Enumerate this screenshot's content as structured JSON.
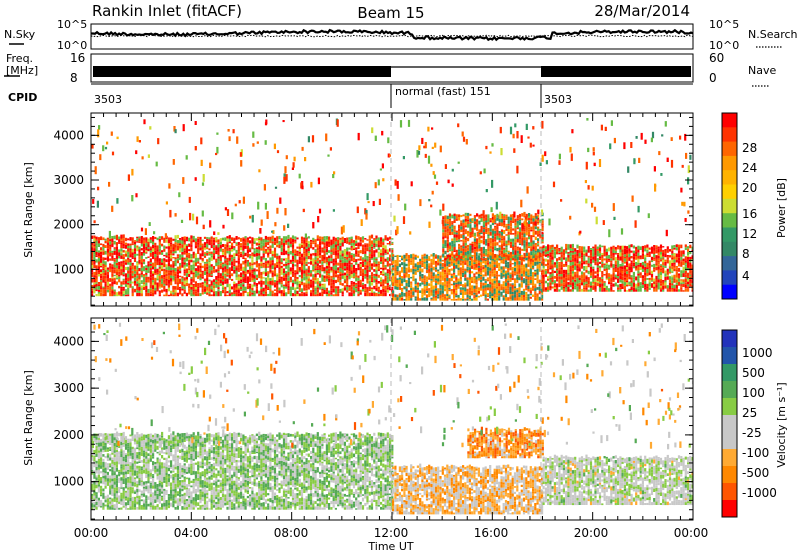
{
  "header": {
    "station": "Rankin Inlet (fitACF)",
    "beam": "Beam 15",
    "date": "28/Mar/2014"
  },
  "strip": {
    "nsky_label": "N.Sky",
    "nsearch_label": "N.Search",
    "freq_label_1": "Freq.",
    "freq_label_2": "[MHz]",
    "nave_label": "Nave",
    "cpid_label": "CPID",
    "left_ticks_noise": [
      "10^5",
      "10^0"
    ],
    "right_ticks_noise": [
      "10^5",
      "10^0"
    ],
    "left_ticks_freq": [
      "16",
      "8"
    ],
    "right_ticks_nave": [
      "60",
      "0"
    ],
    "cpid_segments": [
      {
        "text": "3503",
        "start_hour": 0
      },
      {
        "text": "normal (fast) 151",
        "start_hour": 12
      },
      {
        "text": "3503",
        "start_hour": 18
      }
    ]
  },
  "power_panel": {
    "ylabel": "Slant Range [km]",
    "cbar_label": "Power [dB]",
    "cbar_ticks": [
      "28",
      "24",
      "20",
      "16",
      "12",
      "8",
      "4"
    ],
    "cbar_colors": [
      "#ff0000",
      "#ff3300",
      "#ff6600",
      "#ff9900",
      "#ffb300",
      "#ffd000",
      "#ccdd33",
      "#66bb44",
      "#339966",
      "#338866",
      "#336699",
      "#2244bb",
      "#0000ff"
    ]
  },
  "velocity_panel": {
    "ylabel": "Slant Range [km]",
    "cbar_label": "Velocity [m s⁻¹]",
    "cbar_ticks": [
      "1000",
      "500",
      "100",
      "25",
      "-25",
      "-100",
      "-500",
      "-1000"
    ],
    "cbar_colors": [
      "#2233bb",
      "#2255aa",
      "#339966",
      "#55aa55",
      "#88cc44",
      "#c8c8c8",
      "#c8c8c8",
      "#ffaa33",
      "#ff8800",
      "#ff5500",
      "#ff0000"
    ]
  },
  "x_axis": {
    "label": "Time UT",
    "ticks": [
      "00:00",
      "04:00",
      "08:00",
      "12:00",
      "16:00",
      "20:00",
      "00:00"
    ]
  },
  "chart_data": [
    {
      "type": "heatmap",
      "title": "Rankin Inlet (fitACF) Beam 15 28/Mar/2014",
      "xlabel": "Time UT",
      "ylabel": "Slant Range [km]",
      "colorbar_label": "Power [dB]",
      "xlim": [
        "00:00",
        "24:00"
      ],
      "ylim": [
        180,
        4500
      ],
      "yticks": [
        1000,
        2000,
        3000,
        4000
      ],
      "clim": [
        0,
        30
      ],
      "description_bands": [
        {
          "t_start": 0,
          "t_end": 12,
          "range_min": 400,
          "range_max": 1700,
          "power_db": 26
        },
        {
          "t_start": 12,
          "t_end": 18,
          "range_min": 300,
          "range_max": 1300,
          "power_db": 22
        },
        {
          "t_start": 14,
          "t_end": 18,
          "range_min": 1200,
          "range_max": 2200,
          "power_db": 24
        },
        {
          "t_start": 18,
          "t_end": 24,
          "range_min": 500,
          "range_max": 1500,
          "power_db": 26
        }
      ]
    },
    {
      "type": "heatmap",
      "xlabel": "Time UT",
      "ylabel": "Slant Range [km]",
      "colorbar_label": "Velocity [m s⁻¹]",
      "xlim": [
        "00:00",
        "24:00"
      ],
      "ylim": [
        180,
        4500
      ],
      "yticks": [
        1000,
        2000,
        3000,
        4000
      ],
      "clim": [
        -1000,
        1000
      ],
      "description_bands": [
        {
          "t_start": 0,
          "t_end": 12,
          "range_min": 400,
          "range_max": 2000,
          "velocity": 150
        },
        {
          "t_start": 12,
          "t_end": 18,
          "range_min": 300,
          "range_max": 1300,
          "velocity": -300
        },
        {
          "t_start": 15,
          "t_end": 18,
          "range_min": 1500,
          "range_max": 2100,
          "velocity": -500
        },
        {
          "t_start": 18,
          "t_end": 24,
          "range_min": 500,
          "range_max": 1500,
          "velocity": 0
        }
      ]
    }
  ]
}
